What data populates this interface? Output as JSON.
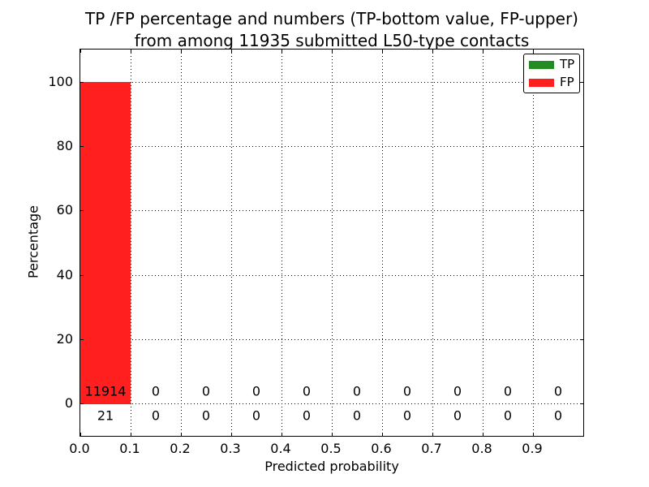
{
  "chart_data": {
    "type": "bar",
    "title_line1": "TP /FP percentage and numbers (TP-bottom value, FP-upper)",
    "title_line2": "from among 11935 submitted L50-type contacts",
    "xlabel": "Predicted probability",
    "ylabel": "Percentage",
    "total_contacts": 11935,
    "xlim": [
      0.0,
      1.0
    ],
    "ylim": [
      -10,
      110
    ],
    "grid": true,
    "legend_position": "upper right",
    "x_ticks": [
      0.0,
      0.1,
      0.2,
      0.3,
      0.4,
      0.5,
      0.6,
      0.7,
      0.8,
      0.9
    ],
    "x_tick_labels": [
      "0.0",
      "0.1",
      "0.2",
      "0.3",
      "0.4",
      "0.5",
      "0.6",
      "0.7",
      "0.8",
      "0.9"
    ],
    "y_ticks": [
      0,
      20,
      40,
      60,
      80,
      100
    ],
    "y_tick_labels": [
      "0",
      "20",
      "40",
      "60",
      "80",
      "100"
    ],
    "bin_starts": [
      0.0,
      0.1,
      0.2,
      0.3,
      0.4,
      0.5,
      0.6,
      0.7,
      0.8,
      0.9
    ],
    "bin_width": 0.1,
    "series": [
      {
        "name": "TP",
        "color": "#228B22",
        "label_row": "bottom",
        "counts": [
          21,
          0,
          0,
          0,
          0,
          0,
          0,
          0,
          0,
          0
        ],
        "percent": [
          0.176,
          0,
          0,
          0,
          0,
          0,
          0,
          0,
          0,
          0
        ]
      },
      {
        "name": "FP",
        "color": "#FF1F1F",
        "label_row": "upper",
        "counts": [
          11914,
          0,
          0,
          0,
          0,
          0,
          0,
          0,
          0,
          0
        ],
        "percent": [
          99.824,
          0,
          0,
          0,
          0,
          0,
          0,
          0,
          0,
          0
        ]
      }
    ]
  }
}
